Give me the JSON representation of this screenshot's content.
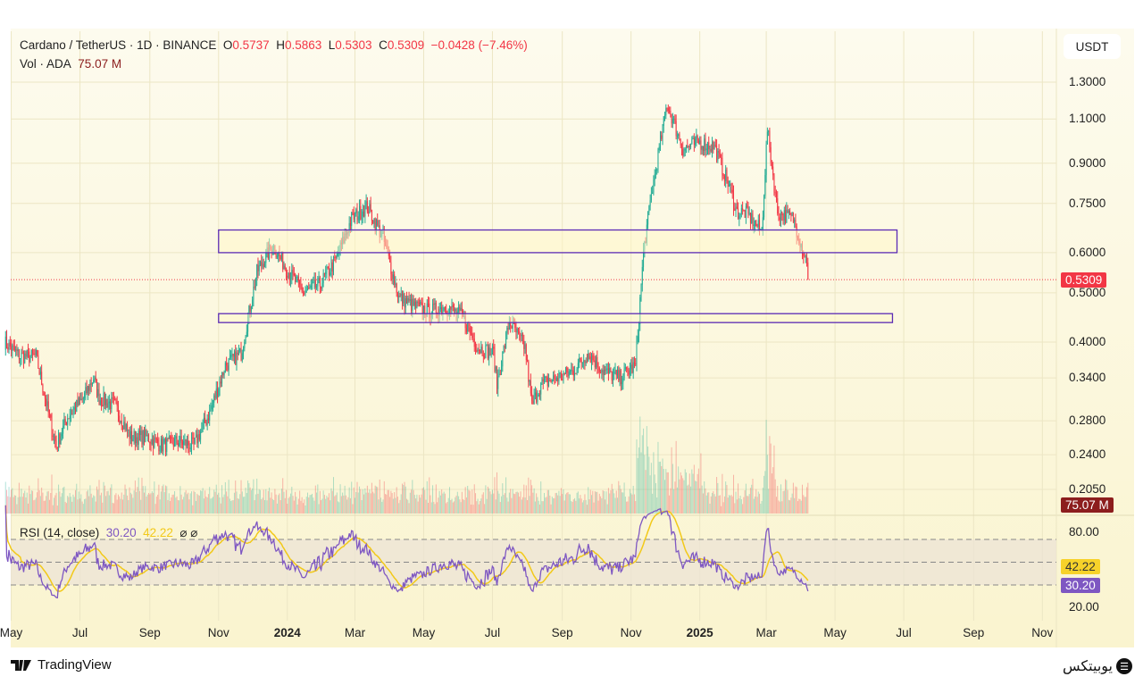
{
  "header": {
    "symbol": "Cardano / TetherUS · 1D · BINANCE",
    "o_label": "O",
    "o": "0.5737",
    "h_label": "H",
    "h": "0.5863",
    "l_label": "L",
    "l": "0.5303",
    "c_label": "C",
    "c": "0.5309",
    "change": "−0.0428 (−7.46%)",
    "vol_label": "Vol · ADA",
    "vol": "75.07 M"
  },
  "currency_button": "USDT",
  "price_axis": [
    "1.3000",
    "1.1000",
    "0.9000",
    "0.7500",
    "0.6000",
    "0.5000",
    "0.4000",
    "0.3400",
    "0.2800",
    "0.2400",
    "0.2050"
  ],
  "price_tag": "0.5309",
  "volume_tag": "75.07 M",
  "rsi": {
    "label": "RSI (14, close)",
    "value": "30.20",
    "ma_value": "42.22",
    "icons": "⌀ ⌀",
    "axis": [
      "80.00",
      "20.00"
    ],
    "rsi_tag": "30.20",
    "ma_tag": "42.22"
  },
  "time_axis": [
    {
      "label": "May",
      "date": "2023-05-01",
      "bold": false
    },
    {
      "label": "Jul",
      "date": "2023-07-01",
      "bold": false
    },
    {
      "label": "Sep",
      "date": "2023-09-01",
      "bold": false
    },
    {
      "label": "Nov",
      "date": "2023-11-01",
      "bold": false
    },
    {
      "label": "2024",
      "date": "2024-01-01",
      "bold": true
    },
    {
      "label": "Mar",
      "date": "2024-03-01",
      "bold": false
    },
    {
      "label": "May",
      "date": "2024-05-01",
      "bold": false
    },
    {
      "label": "Jul",
      "date": "2024-07-01",
      "bold": false
    },
    {
      "label": "Sep",
      "date": "2024-09-01",
      "bold": false
    },
    {
      "label": "Nov",
      "date": "2024-11-01",
      "bold": false
    },
    {
      "label": "2025",
      "date": "2025-01-01",
      "bold": true
    },
    {
      "label": "Mar",
      "date": "2025-03-01",
      "bold": false
    },
    {
      "label": "May",
      "date": "2025-05-01",
      "bold": false
    },
    {
      "label": "Jul",
      "date": "2025-07-01",
      "bold": false
    },
    {
      "label": "Sep",
      "date": "2025-09-01",
      "bold": false
    },
    {
      "label": "Nov",
      "date": "2025-11-01",
      "bold": false
    }
  ],
  "footer": {
    "tradingview": "TradingView",
    "brand": "یوبیتکس"
  },
  "colors": {
    "up": "#22ab94",
    "down": "#f23645",
    "rsi": "#7e57c2",
    "rsi_ma": "#f2c919",
    "box": "#5b2bb5"
  },
  "chart_data": {
    "type": "candlestick",
    "title": "Cardano / TetherUS · 1D · BINANCE",
    "yscale": "log",
    "ylim": [
      0.2,
      1.35
    ],
    "xlim": [
      "2023-04-25",
      "2025-11-20"
    ],
    "approx_closes": [
      [
        "2023-04-25",
        0.4
      ],
      [
        "2023-05-09",
        0.375
      ],
      [
        "2023-05-23",
        0.375
      ],
      [
        "2023-06-06",
        0.27
      ],
      [
        "2023-06-10",
        0.25
      ],
      [
        "2023-06-20",
        0.285
      ],
      [
        "2023-07-04",
        0.31
      ],
      [
        "2023-07-13",
        0.34
      ],
      [
        "2023-07-18",
        0.31
      ],
      [
        "2023-08-01",
        0.3
      ],
      [
        "2023-08-15",
        0.26
      ],
      [
        "2023-08-29",
        0.26
      ],
      [
        "2023-09-12",
        0.25
      ],
      [
        "2023-09-26",
        0.255
      ],
      [
        "2023-10-10",
        0.25
      ],
      [
        "2023-10-24",
        0.29
      ],
      [
        "2023-11-07",
        0.36
      ],
      [
        "2023-11-21",
        0.38
      ],
      [
        "2023-12-05",
        0.55
      ],
      [
        "2023-12-19",
        0.62
      ],
      [
        "2024-01-02",
        0.55
      ],
      [
        "2024-01-16",
        0.5
      ],
      [
        "2024-01-30",
        0.52
      ],
      [
        "2024-02-13",
        0.58
      ],
      [
        "2024-02-27",
        0.7
      ],
      [
        "2024-03-12",
        0.74
      ],
      [
        "2024-03-26",
        0.64
      ],
      [
        "2024-04-09",
        0.49
      ],
      [
        "2024-04-23",
        0.47
      ],
      [
        "2024-05-07",
        0.46
      ],
      [
        "2024-05-21",
        0.47
      ],
      [
        "2024-06-04",
        0.45
      ],
      [
        "2024-06-18",
        0.39
      ],
      [
        "2024-07-02",
        0.38
      ],
      [
        "2024-07-05",
        0.33
      ],
      [
        "2024-07-16",
        0.44
      ],
      [
        "2024-07-30",
        0.39
      ],
      [
        "2024-08-05",
        0.3
      ],
      [
        "2024-08-13",
        0.33
      ],
      [
        "2024-08-27",
        0.34
      ],
      [
        "2024-09-10",
        0.35
      ],
      [
        "2024-09-24",
        0.38
      ],
      [
        "2024-10-08",
        0.35
      ],
      [
        "2024-10-22",
        0.34
      ],
      [
        "2024-11-05",
        0.36
      ],
      [
        "2024-11-12",
        0.6
      ],
      [
        "2024-11-19",
        0.78
      ],
      [
        "2024-12-03",
        1.18
      ],
      [
        "2024-12-17",
        0.96
      ],
      [
        "2024-12-31",
        0.99
      ],
      [
        "2025-01-14",
        0.97
      ],
      [
        "2025-01-28",
        0.8
      ],
      [
        "2025-02-03",
        0.72
      ],
      [
        "2025-02-11",
        0.72
      ],
      [
        "2025-02-25",
        0.66
      ],
      [
        "2025-03-02",
        1.05
      ],
      [
        "2025-03-11",
        0.72
      ],
      [
        "2025-03-25",
        0.7
      ],
      [
        "2025-04-06",
        0.5737
      ],
      [
        "2025-04-07",
        0.5309
      ]
    ],
    "last_candle": {
      "date": "2025-04-07",
      "open": 0.5737,
      "high": 0.5863,
      "low": 0.5303,
      "close": 0.5309
    },
    "zones": [
      {
        "name": "resistance",
        "from_date": "2023-11-01",
        "to_date": "2025-06-25",
        "low": 0.6,
        "high": 0.665
      },
      {
        "name": "support",
        "from_date": "2023-11-01",
        "to_date": "2025-06-21",
        "low": 0.437,
        "high": 0.455
      }
    ],
    "price_line": 0.5309,
    "rsi_bands": [
      70,
      50,
      30
    ]
  }
}
